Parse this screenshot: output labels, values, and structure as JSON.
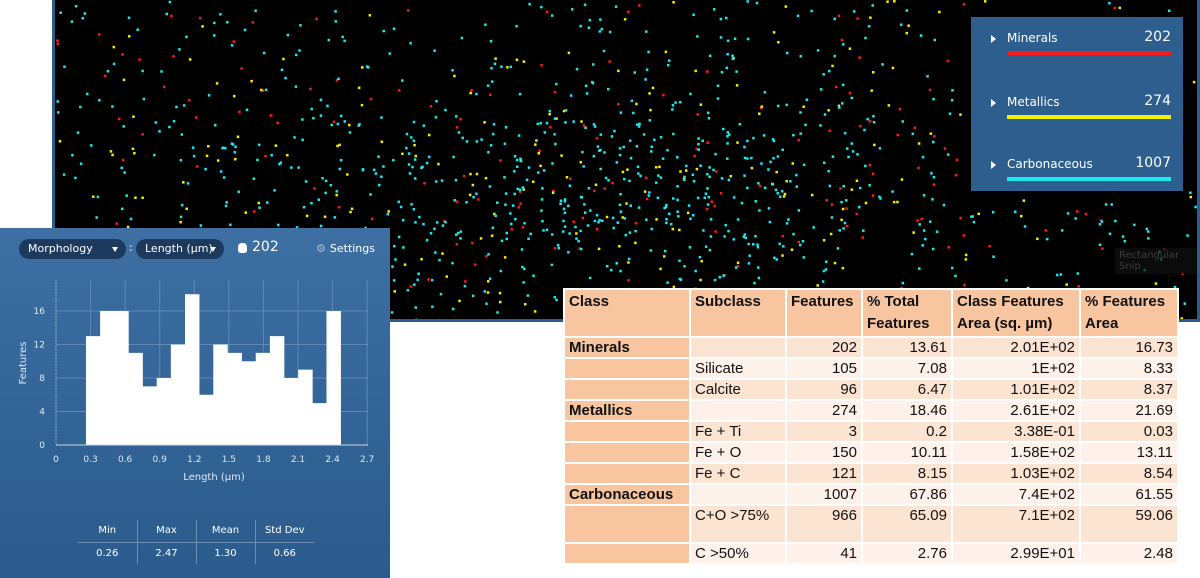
{
  "legend": {
    "items": [
      {
        "name": "Minerals",
        "count": "202",
        "color": "#ff1a1a"
      },
      {
        "name": "Metallics",
        "count": "274",
        "color": "#f4f000"
      },
      {
        "name": "Carbonaceous",
        "count": "1007",
        "color": "#19ecf0"
      }
    ]
  },
  "tooltip": "Rectangular Snip",
  "panel": {
    "category_dropdown": "Morphology",
    "separator": ":",
    "metric_dropdown": "Length (µm)",
    "feature_count": "202",
    "settings_label": "Settings",
    "stats": {
      "headers": [
        "Min",
        "Max",
        "Mean",
        "Std Dev"
      ],
      "values": [
        "0.26",
        "2.47",
        "1.30",
        "0.66"
      ]
    }
  },
  "chart_data": {
    "type": "bar",
    "subtype": "histogram",
    "xlabel": "Length (µm)",
    "ylabel": "Features",
    "x_range_data": [
      0.26,
      2.47
    ],
    "counts": [
      13,
      16,
      16,
      11,
      7,
      8,
      12,
      18,
      6,
      12,
      11,
      10,
      11,
      13,
      8,
      9,
      5,
      16
    ],
    "xlim": [
      0,
      2.7
    ],
    "ylim": [
      0,
      19
    ],
    "x_ticks": [
      "0",
      "0.3",
      "0.6",
      "0.9",
      "1.2",
      "1.5",
      "1.8",
      "2.1",
      "2.4",
      "2.7"
    ],
    "y_ticks": [
      "0",
      "4",
      "8",
      "12",
      "16"
    ],
    "grid": true,
    "bar_color": "#ffffff"
  },
  "table": {
    "headers": [
      [
        "Class"
      ],
      [
        "Subclass"
      ],
      [
        "Features"
      ],
      [
        "% Total",
        "Features"
      ],
      [
        "Class Features",
        "Area (sq. µm)"
      ],
      [
        "% Features",
        "Area"
      ]
    ],
    "rows": [
      {
        "class": "Minerals",
        "subclass": "",
        "features": "202",
        "pct_total": "13.61",
        "area": "2.01E+02",
        "pct_area": "16.73"
      },
      {
        "class": "",
        "subclass": "Silicate",
        "features": "105",
        "pct_total": "7.08",
        "area": "1E+02",
        "pct_area": "8.33"
      },
      {
        "class": "",
        "subclass": "Calcite",
        "features": "96",
        "pct_total": "6.47",
        "area": "1.01E+02",
        "pct_area": "8.37"
      },
      {
        "class": "Metallics",
        "subclass": "",
        "features": "274",
        "pct_total": "18.46",
        "area": "2.61E+02",
        "pct_area": "21.69"
      },
      {
        "class": "",
        "subclass": "Fe + Ti",
        "features": "3",
        "pct_total": "0.2",
        "area": "3.38E-01",
        "pct_area": "0.03"
      },
      {
        "class": "",
        "subclass": "Fe + O",
        "features": "150",
        "pct_total": "10.11",
        "area": "1.58E+02",
        "pct_area": "13.11"
      },
      {
        "class": "",
        "subclass": "Fe + C",
        "features": "121",
        "pct_total": "8.15",
        "area": "1.03E+02",
        "pct_area": "8.54"
      },
      {
        "class": "Carbonaceous",
        "subclass": "",
        "features": "1007",
        "pct_total": "67.86",
        "area": "7.4E+02",
        "pct_area": "61.55"
      },
      {
        "class": "",
        "subclass": "C+O >75%",
        "features": "966",
        "pct_total": "65.09",
        "area": "7.1E+02",
        "pct_area": "59.06"
      },
      {
        "class": "",
        "subclass": "C >50%",
        "features": "41",
        "pct_total": "2.76",
        "area": "2.99E+01",
        "pct_area": "2.48"
      }
    ]
  }
}
